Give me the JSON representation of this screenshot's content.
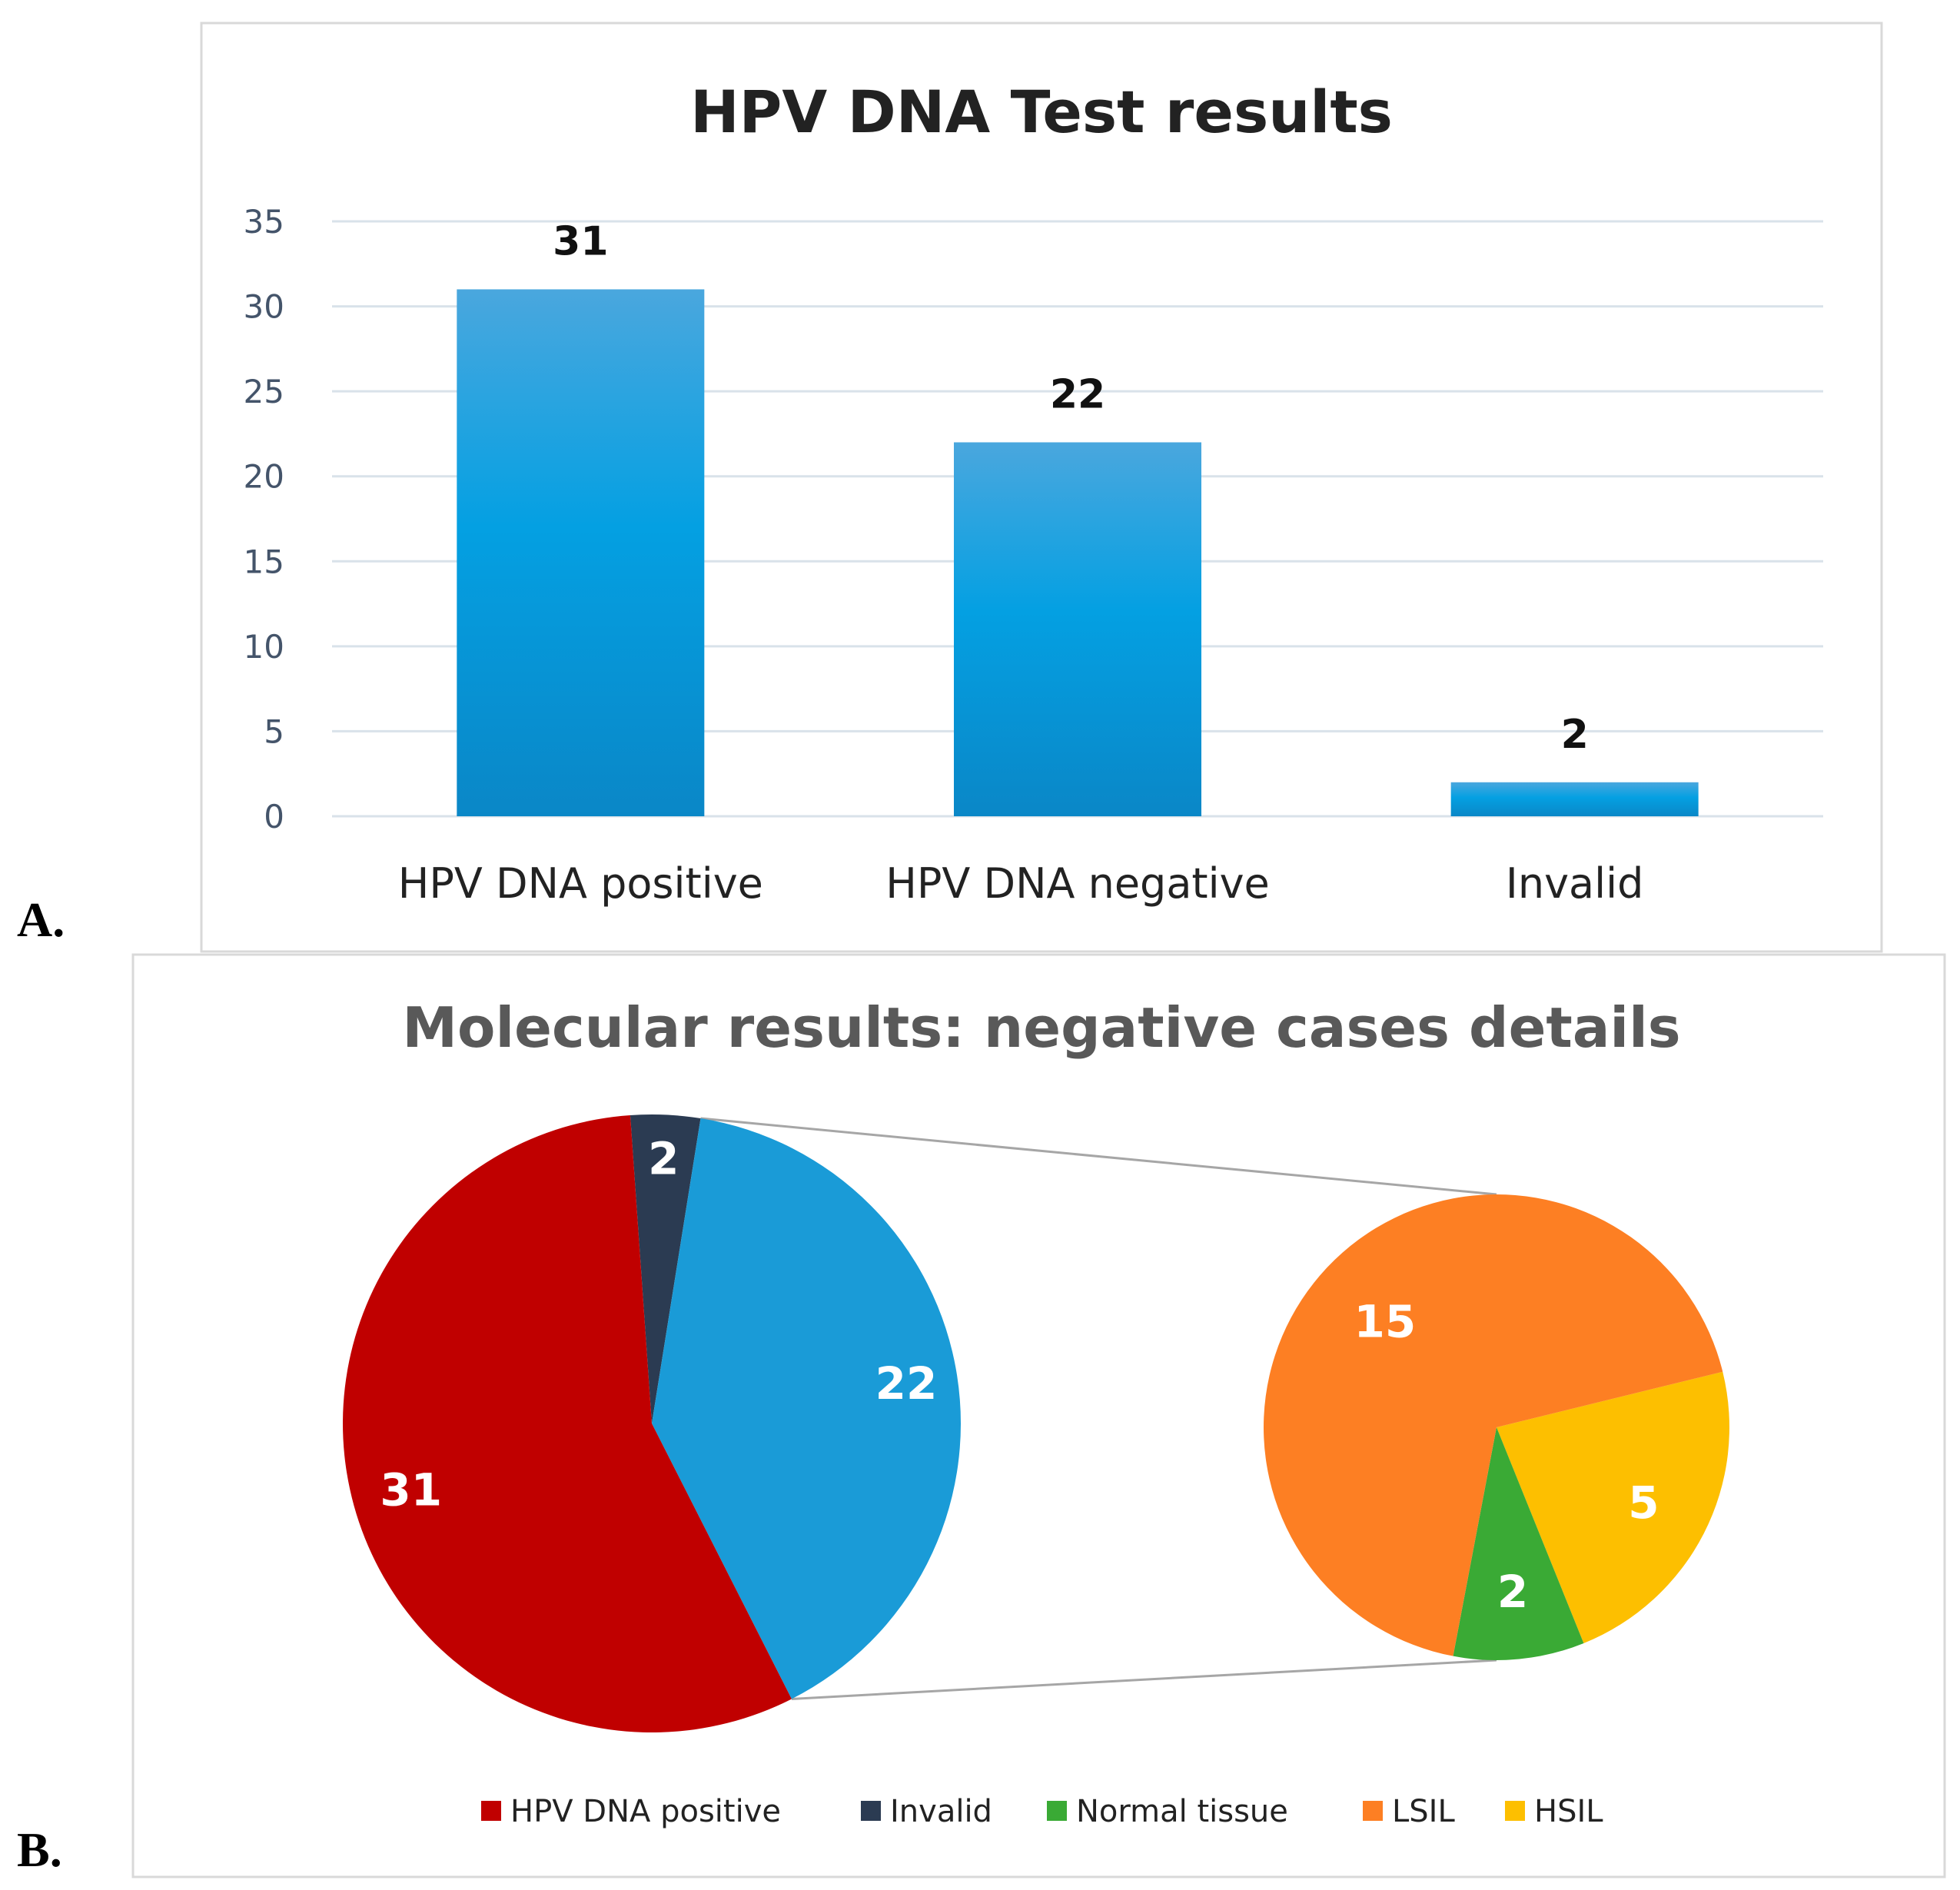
{
  "panel_labels": {
    "a": "A.",
    "b": "B."
  },
  "colors": {
    "bar": "#0a96d6",
    "bar_top": "#4ba8de",
    "bar_bottom": "#0b86c8",
    "grid": "#d9e2ea",
    "positive": "#c00000",
    "invalid": "#2b3b52",
    "negative": "#1a9bd7",
    "normal": "#3aaa35",
    "lsil": "#fd7f23",
    "hsil": "#fdbf00",
    "connector": "#a6a6a6"
  },
  "chart_data": [
    {
      "type": "bar",
      "title": "HPV DNA Test results",
      "categories": [
        "HPV DNA positive",
        "HPV DNA negative",
        "Invalid"
      ],
      "values": [
        31,
        22,
        2
      ],
      "value_labels": [
        "31",
        "22",
        "2"
      ],
      "ylim": [
        0,
        35
      ],
      "yticks": [
        0,
        5,
        10,
        15,
        20,
        25,
        30,
        35
      ],
      "ytick_labels": [
        "0",
        "5",
        "10",
        "15",
        "20",
        "25",
        "30",
        "35"
      ],
      "xlabel": "",
      "ylabel": "",
      "grid": true
    },
    {
      "type": "pie",
      "subtype": "pie-of-pie",
      "title": "Molecular results: negative cases details",
      "main_pie": {
        "slices": [
          {
            "label": "Invalid",
            "value": 2,
            "display": "2",
            "color_key": "invalid"
          },
          {
            "label": "HPV DNA negative",
            "value": 22,
            "display": "22",
            "color_key": "negative"
          },
          {
            "label": "HPV DNA positive",
            "value": 31,
            "display": "31",
            "color_key": "positive"
          }
        ]
      },
      "detail_pie": {
        "slices": [
          {
            "label": "HSIL",
            "value": 5,
            "display": "5",
            "color_key": "hsil"
          },
          {
            "label": "Normal tissue",
            "value": 2,
            "display": "2",
            "color_key": "normal"
          },
          {
            "label": "LSIL",
            "value": 15,
            "display": "15",
            "color_key": "lsil"
          }
        ]
      },
      "legend": [
        {
          "label": "HPV DNA positive",
          "color_key": "positive"
        },
        {
          "label": "Invalid",
          "color_key": "invalid"
        },
        {
          "label": "Normal tissue",
          "color_key": "normal"
        },
        {
          "label": "LSIL",
          "color_key": "lsil"
        },
        {
          "label": "HSIL",
          "color_key": "hsil"
        }
      ],
      "legend_position": "bottom"
    }
  ]
}
